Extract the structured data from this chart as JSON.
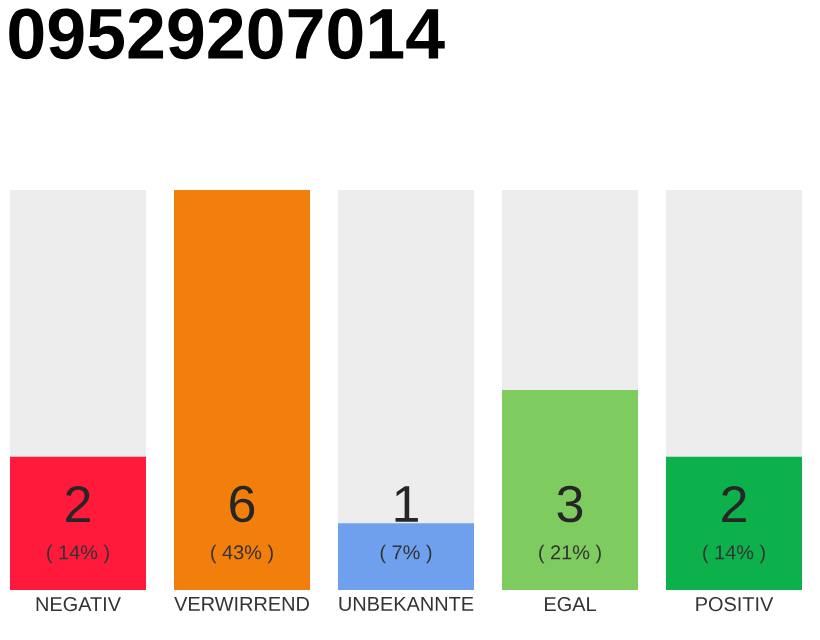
{
  "chart_data": {
    "type": "bar",
    "title": "09529207014",
    "categories": [
      "NEGATIV",
      "VERWIRREND",
      "UNBEKANNTE",
      "EGAL",
      "POSITIV"
    ],
    "values": [
      2,
      6,
      1,
      3,
      2
    ],
    "colors": [
      "#ff1a3c",
      "#f27e0c",
      "#6fa0ee",
      "#7ecb5f",
      "#0db14b"
    ],
    "data_labels": true,
    "annotations": [
      "( 14% )",
      "( 43% )",
      "( 7% )",
      "( 21% )",
      "( 14% )"
    ]
  }
}
